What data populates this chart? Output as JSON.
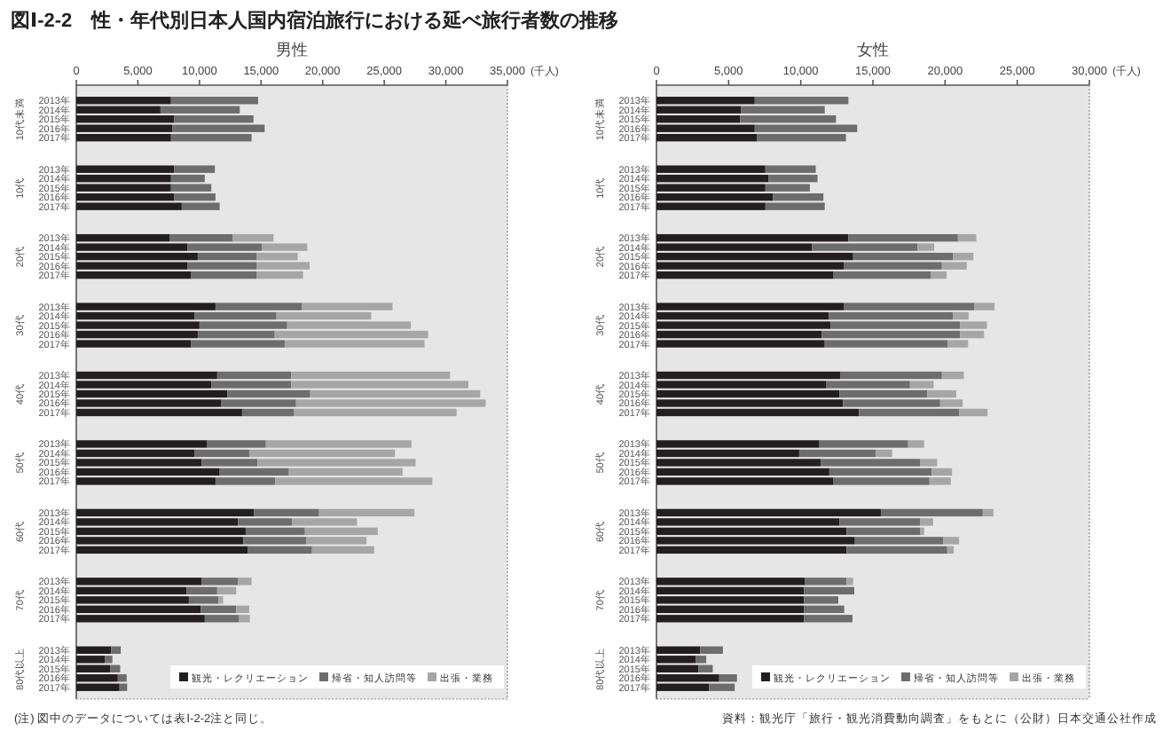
{
  "chart_data": [
    {
      "type": "bar",
      "orientation": "horizontal",
      "stacked": true,
      "title": "図Ⅰ-2-2　性・年代別日本人国内宿泊旅行における延べ旅行者数の推移",
      "subtitle": "男性",
      "xlabel": "(千人)",
      "categories": [
        "2013年",
        "2014年",
        "2015年",
        "2016年",
        "2017年",
        "2013年",
        "2014年",
        "2015年",
        "2016年",
        "2017年",
        "2013年",
        "2014年",
        "2015年",
        "2016年",
        "2017年",
        "2013年",
        "2014年",
        "2015年",
        "2016年",
        "2017年",
        "2013年",
        "2014年",
        "2015年",
        "2016年",
        "2017年",
        "2013年",
        "2014年",
        "2015年",
        "2016年",
        "2017年",
        "2013年",
        "2014年",
        "2015年",
        "2016年",
        "2017年",
        "2013年",
        "2014年",
        "2015年",
        "2016年",
        "2017年",
        "2013年",
        "2014年",
        "2015年",
        "2016年",
        "2017年"
      ],
      "series": [
        {
          "name": "観光・レクリエーション",
          "color": "#231f20",
          "values": [
            7690,
            6830,
            7930,
            7790,
            7690,
            7930,
            7690,
            7690,
            7930,
            8560,
            7600,
            9040,
            9860,
            9040,
            9330,
            11300,
            9620,
            10000,
            9860,
            9330,
            11440,
            10960,
            12260,
            11780,
            13460,
            10630,
            9620,
            10190,
            11640,
            11300,
            14420,
            13130,
            13750,
            13560,
            13940,
            10190,
            8940,
            9140,
            10100,
            10430,
            2840,
            2310,
            2740,
            3370,
            3510
          ]
        },
        {
          "name": "帰省・知人訪問等",
          "color": "#6d6d6d",
          "values": [
            7070,
            6440,
            6450,
            7500,
            6540,
            3320,
            2740,
            3270,
            3370,
            3080,
            5090,
            6010,
            4800,
            5620,
            5330,
            7020,
            6630,
            7120,
            6250,
            7590,
            6010,
            6490,
            6730,
            6060,
            4230,
            4760,
            4420,
            4520,
            5620,
            4850,
            5290,
            4370,
            4810,
            5090,
            5200,
            2940,
            2500,
            2400,
            2880,
            2790,
            770,
            620,
            820,
            720,
            620
          ]
        },
        {
          "name": "出張・業務",
          "color": "#a6a6a6",
          "values": [
            0,
            0,
            0,
            0,
            0,
            0,
            0,
            0,
            0,
            0,
            3320,
            3700,
            3320,
            4280,
            3750,
            7350,
            7690,
            10040,
            12450,
            11350,
            12890,
            14380,
            13800,
            15390,
            13180,
            11820,
            11830,
            12840,
            9230,
            12750,
            7740,
            5290,
            5910,
            4910,
            5040,
            1100,
            1540,
            380,
            1060,
            870,
            0,
            0,
            0,
            0,
            0
          ]
        }
      ],
      "xlim": [
        0,
        35000
      ],
      "xticks": [
        0,
        {
          "value": 5000,
          "label": "5,000"
        },
        {
          "value": 10000,
          "label": "10,000"
        },
        {
          "value": 15000,
          "label": "15,000"
        },
        {
          "value": 20000,
          "label": "20,000"
        },
        {
          "value": 25000,
          "label": "25,000"
        },
        {
          "value": 30000,
          "label": "30,000"
        },
        {
          "value": 35000,
          "label": "35,000"
        }
      ],
      "legend": "bottom right",
      "grid": false,
      "annotations": [
        "10代未満",
        "10代",
        "20代",
        "30代",
        "40代",
        "50代",
        "60代",
        "70代",
        "80代以上",
        "(注) 図中のデータについては表Ⅰ-2-2注と同じ。"
      ]
    },
    {
      "type": "bar",
      "orientation": "horizontal",
      "stacked": true,
      "title": "女性",
      "xlabel": "(千人)",
      "categories": [
        "2013年",
        "2014年",
        "2015年",
        "2016年",
        "2017年",
        "2013年",
        "2014年",
        "2015年",
        "2016年",
        "2017年",
        "2013年",
        "2014年",
        "2015年",
        "2016年",
        "2017年",
        "2013年",
        "2014年",
        "2015年",
        "2016年",
        "2017年",
        "2013年",
        "2014年",
        "2015年",
        "2016年",
        "2017年",
        "2013年",
        "2014年",
        "2015年",
        "2016年",
        "2017年",
        "2013年",
        "2014年",
        "2015年",
        "2016年",
        "2017年",
        "2013年",
        "2014年",
        "2015年",
        "2016年",
        "2017年",
        "2013年",
        "2014年",
        "2015年",
        "2016年",
        "2017年"
      ],
      "series": [
        {
          "name": "観光・レクリエーション",
          "color": "#231f20",
          "values": [
            6810,
            5870,
            5790,
            6810,
            6980,
            7550,
            7760,
            7550,
            8080,
            7550,
            13300,
            10790,
            13630,
            13010,
            12270,
            13010,
            11940,
            12070,
            11450,
            11660,
            12760,
            11780,
            12680,
            12930,
            14040,
            11290,
            9890,
            11370,
            11980,
            12270,
            15550,
            12680,
            13170,
            13750,
            13170,
            10300,
            10220,
            10220,
            10220,
            10220,
            3040,
            2710,
            2910,
            4350,
            3650
          ]
        },
        {
          "name": "帰省・知人訪問等",
          "color": "#6d6d6d",
          "values": [
            6490,
            5790,
            6650,
            7100,
            6150,
            3490,
            3400,
            3080,
            3490,
            4110,
            7590,
            7310,
            6930,
            6770,
            6730,
            9030,
            8620,
            8980,
            9600,
            8530,
            7020,
            5790,
            6080,
            6730,
            6930,
            6150,
            5290,
            6890,
            7100,
            6650,
            7060,
            5580,
            5090,
            6110,
            6980,
            2870,
            3490,
            2380,
            2790,
            3360,
            1560,
            740,
            990,
            1230,
            1770
          ]
        },
        {
          "name": "出張・業務",
          "color": "#a6a6a6",
          "values": [
            0,
            0,
            0,
            0,
            0,
            0,
            0,
            0,
            0,
            0,
            1270,
            1150,
            1400,
            1720,
            1110,
            1390,
            1070,
            1850,
            1650,
            1400,
            1520,
            1640,
            2010,
            1560,
            1970,
            1110,
            1150,
            1190,
            1400,
            1480,
            740,
            910,
            290,
            1110,
            450,
            460,
            0,
            0,
            0,
            0,
            0,
            0,
            0,
            0,
            0
          ]
        }
      ],
      "xlim": [
        0,
        30000
      ],
      "xticks": [
        0,
        {
          "value": 5000,
          "label": "5,000"
        },
        {
          "value": 10000,
          "label": "10,000"
        },
        {
          "value": 15000,
          "label": "15,000"
        },
        {
          "value": 20000,
          "label": "20,000"
        },
        {
          "value": 25000,
          "label": "25,000"
        },
        {
          "value": 30000,
          "label": "30,000"
        }
      ],
      "legend": "bottom right",
      "grid": false,
      "annotations": [
        "10代未満",
        "10代",
        "20代",
        "30代",
        "40代",
        "50代",
        "60代",
        "70代",
        "80代以上",
        "資料：観光庁「旅行・観光消費動向調査」をもとに（公財）日本交通公社作成"
      ]
    }
  ]
}
